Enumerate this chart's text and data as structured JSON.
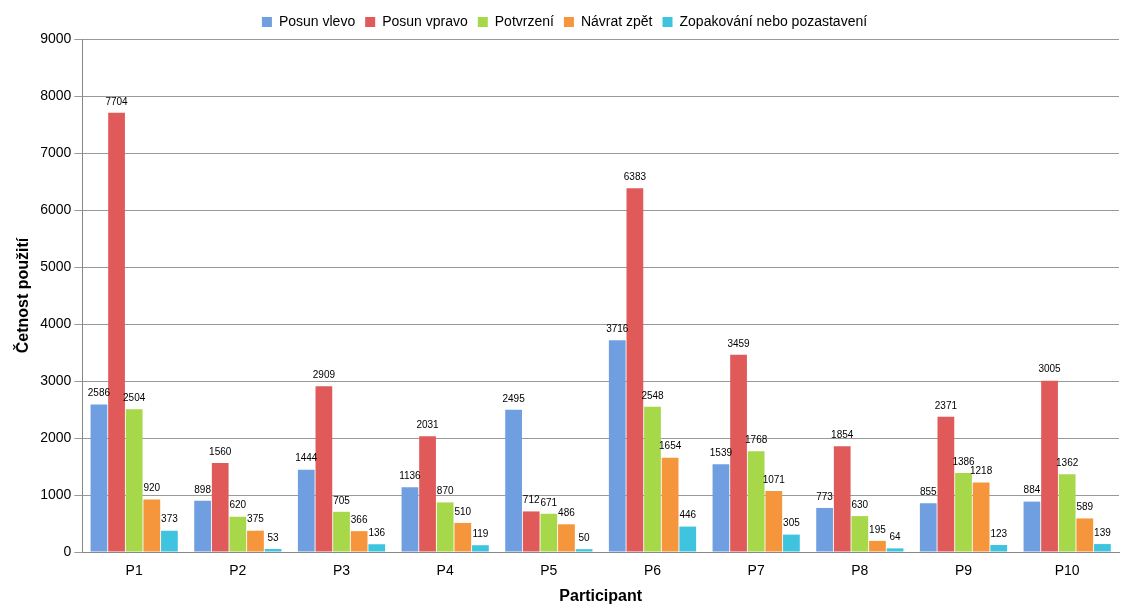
{
  "chart_data": {
    "type": "bar",
    "xlabel": "Participant",
    "ylabel": "Četnost použití",
    "categories": [
      "P1",
      "P2",
      "P3",
      "P4",
      "P5",
      "P6",
      "P7",
      "P8",
      "P9",
      "P10"
    ],
    "series": [
      {
        "name": "Posun vlevo",
        "color": "#6f9fe0",
        "values": [
          2586,
          898,
          1444,
          1136,
          2495,
          3716,
          1539,
          773,
          855,
          884
        ]
      },
      {
        "name": "Posun vpravo",
        "color": "#e05a5a",
        "values": [
          7704,
          1560,
          2909,
          2031,
          712,
          6383,
          3459,
          1854,
          2371,
          3005
        ]
      },
      {
        "name": "Potvrzení",
        "color": "#a6d84a",
        "values": [
          2504,
          620,
          705,
          870,
          671,
          2548,
          1768,
          630,
          1386,
          1362
        ]
      },
      {
        "name": "Návrat zpět",
        "color": "#f5963c",
        "values": [
          920,
          375,
          366,
          510,
          486,
          1654,
          1071,
          195,
          1218,
          589
        ]
      },
      {
        "name": "Zopakování nebo pozastavení",
        "color": "#3fc4e0",
        "values": [
          373,
          53,
          136,
          119,
          50,
          446,
          305,
          64,
          123,
          139
        ]
      }
    ],
    "ylim": [
      0,
      9000
    ],
    "yticks": [
      0,
      1000,
      2000,
      3000,
      4000,
      5000,
      6000,
      7000,
      8000,
      9000
    ],
    "grid": "y",
    "legend": "top",
    "data_labels": true
  }
}
